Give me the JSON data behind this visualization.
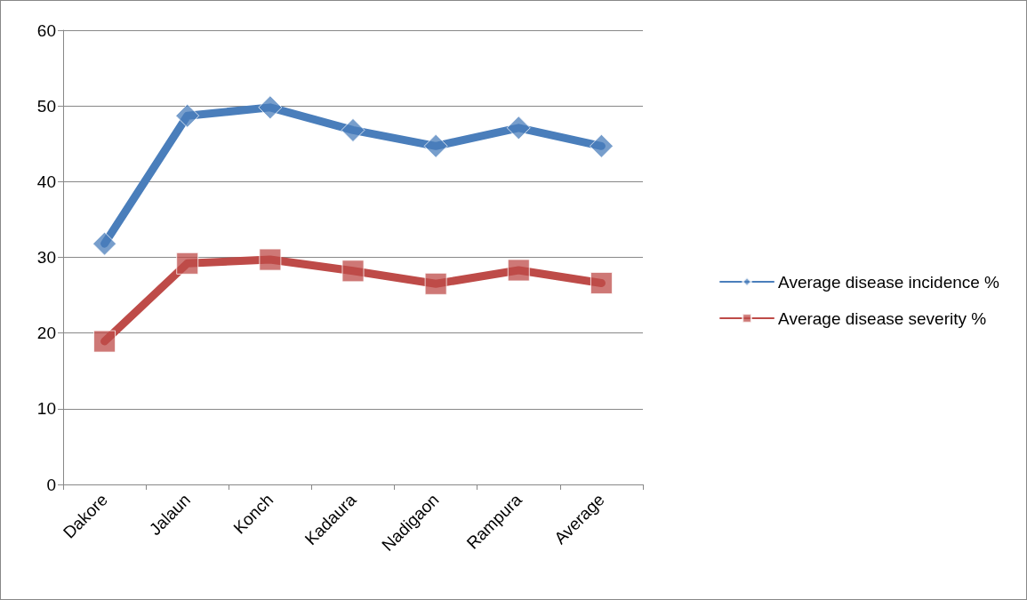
{
  "chart_data": {
    "type": "line",
    "categories": [
      "Dakore",
      "Jalaun",
      "Konch",
      "Kadaura",
      "Nadigaon",
      "Rampura",
      "Average"
    ],
    "series": [
      {
        "name": "Average disease incidence %",
        "color": "#4a7ebb",
        "marker": "diamond",
        "values": [
          31.8,
          48.7,
          49.8,
          46.8,
          44.7,
          47.1,
          44.7
        ]
      },
      {
        "name": "Average disease severity %",
        "color": "#be4b48",
        "marker": "square",
        "values": [
          18.9,
          29.2,
          29.7,
          28.2,
          26.5,
          28.3,
          26.6
        ]
      }
    ],
    "ylim": [
      0,
      60
    ],
    "yticks": [
      0,
      10,
      20,
      30,
      40,
      50,
      60
    ],
    "grid": "y",
    "legend": "right"
  }
}
